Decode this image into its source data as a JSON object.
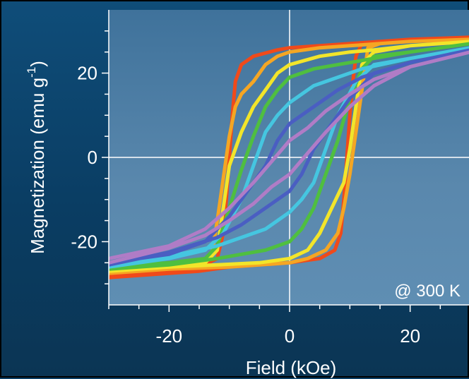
{
  "chart_data": {
    "type": "line",
    "title": "",
    "xlabel": "Field (kOe)",
    "ylabel": "Magnetization  (emu g",
    "ylabel_sup": "-1",
    "ylabel_close": ")",
    "annotation": "@ 300 K",
    "xlim": [
      -30,
      30
    ],
    "ylim": [
      -35,
      35
    ],
    "xticks": [
      -20,
      0,
      20
    ],
    "yticks": [
      -20,
      0,
      20
    ],
    "grid_lines_at_zero": true,
    "background_color": "#4d7fa6",
    "series": [
      {
        "color": "#f04a1a",
        "upper": [
          [
            -30,
            -28
          ],
          [
            -20,
            -27
          ],
          [
            -15,
            -26
          ],
          [
            -12,
            -24
          ],
          [
            -11,
            -18
          ],
          [
            -10.5,
            -10
          ],
          [
            -10,
            0
          ],
          [
            -9.5,
            10
          ],
          [
            -9,
            18
          ],
          [
            -8,
            22
          ],
          [
            -6,
            24
          ],
          [
            -2,
            25.5
          ],
          [
            0,
            26
          ],
          [
            5,
            26.5
          ],
          [
            10,
            27
          ],
          [
            15,
            27.5
          ],
          [
            20,
            28
          ],
          [
            30,
            28.5
          ]
        ],
        "lower": [
          [
            30,
            28.5
          ],
          [
            20,
            28
          ],
          [
            15,
            27.5
          ],
          [
            12,
            27
          ],
          [
            11,
            24
          ],
          [
            10.5,
            18
          ],
          [
            10,
            10
          ],
          [
            9.5,
            0
          ],
          [
            9,
            -10
          ],
          [
            8.5,
            -18
          ],
          [
            7.5,
            -22
          ],
          [
            5,
            -24
          ],
          [
            0,
            -25
          ],
          [
            -5,
            -25.5
          ],
          [
            -10,
            -26
          ],
          [
            -15,
            -27
          ],
          [
            -20,
            -27.5
          ],
          [
            -30,
            -28.5
          ]
        ]
      },
      {
        "color": "#f5a623",
        "upper": [
          [
            -30,
            -27
          ],
          [
            -20,
            -26
          ],
          [
            -15,
            -25
          ],
          [
            -13,
            -24
          ],
          [
            -12,
            -15
          ],
          [
            -11,
            -5
          ],
          [
            -10,
            5
          ],
          [
            -9,
            12
          ],
          [
            -8,
            15
          ],
          [
            -6,
            18
          ],
          [
            -4,
            22
          ],
          [
            -2,
            24
          ],
          [
            0,
            25
          ],
          [
            5,
            26
          ],
          [
            10,
            26.5
          ],
          [
            20,
            27.5
          ],
          [
            30,
            28
          ]
        ],
        "lower": [
          [
            30,
            28
          ],
          [
            20,
            27.5
          ],
          [
            15,
            27
          ],
          [
            13,
            26
          ],
          [
            12,
            16
          ],
          [
            11,
            6
          ],
          [
            10,
            -4
          ],
          [
            9,
            -12
          ],
          [
            8,
            -18
          ],
          [
            6,
            -22
          ],
          [
            3,
            -24
          ],
          [
            0,
            -25
          ],
          [
            -10,
            -26
          ],
          [
            -20,
            -26.5
          ],
          [
            -30,
            -27.5
          ]
        ]
      },
      {
        "color": "#f2e52a",
        "upper": [
          [
            -30,
            -27
          ],
          [
            -20,
            -26
          ],
          [
            -14,
            -25
          ],
          [
            -12,
            -22
          ],
          [
            -11,
            -12
          ],
          [
            -10,
            -2
          ],
          [
            -8,
            6
          ],
          [
            -6,
            12
          ],
          [
            -4,
            16
          ],
          [
            -2,
            20
          ],
          [
            0,
            22
          ],
          [
            5,
            24
          ],
          [
            10,
            25
          ],
          [
            14,
            25.5
          ],
          [
            20,
            26.5
          ],
          [
            30,
            27.5
          ]
        ],
        "lower": [
          [
            30,
            27.5
          ],
          [
            20,
            26.5
          ],
          [
            14,
            25
          ],
          [
            12,
            22
          ],
          [
            11,
            12
          ],
          [
            10,
            2
          ],
          [
            9,
            -6
          ],
          [
            7,
            -12
          ],
          [
            5,
            -18
          ],
          [
            3,
            -22
          ],
          [
            0,
            -24
          ],
          [
            -5,
            -25
          ],
          [
            -12,
            -25.5
          ],
          [
            -20,
            -26
          ],
          [
            -30,
            -27
          ]
        ]
      },
      {
        "color": "#4fbf3f",
        "upper": [
          [
            -30,
            -26
          ],
          [
            -20,
            -25
          ],
          [
            -14,
            -24
          ],
          [
            -12,
            -21
          ],
          [
            -10,
            -12
          ],
          [
            -8,
            -3
          ],
          [
            -6,
            5
          ],
          [
            -4,
            12
          ],
          [
            -2,
            16
          ],
          [
            0,
            19
          ],
          [
            4,
            21
          ],
          [
            8,
            22
          ],
          [
            12,
            23
          ],
          [
            20,
            25
          ],
          [
            30,
            27
          ]
        ],
        "lower": [
          [
            30,
            27
          ],
          [
            20,
            25
          ],
          [
            14,
            24
          ],
          [
            12,
            21
          ],
          [
            10,
            14
          ],
          [
            8,
            4
          ],
          [
            6,
            -4
          ],
          [
            4,
            -12
          ],
          [
            2,
            -17
          ],
          [
            0,
            -20
          ],
          [
            -4,
            -22
          ],
          [
            -8,
            -23
          ],
          [
            -12,
            -24
          ],
          [
            -20,
            -25.5
          ],
          [
            -30,
            -26.5
          ]
        ]
      },
      {
        "color": "#45c6e0",
        "upper": [
          [
            -30,
            -26
          ],
          [
            -20,
            -24
          ],
          [
            -14,
            -22
          ],
          [
            -11,
            -18
          ],
          [
            -8,
            -10
          ],
          [
            -6,
            -2
          ],
          [
            -4,
            6
          ],
          [
            -2,
            10
          ],
          [
            0,
            13
          ],
          [
            4,
            17
          ],
          [
            8,
            19
          ],
          [
            12,
            21
          ],
          [
            20,
            23.5
          ],
          [
            30,
            26
          ]
        ],
        "lower": [
          [
            30,
            26
          ],
          [
            20,
            23.5
          ],
          [
            14,
            22
          ],
          [
            11,
            18
          ],
          [
            8,
            10
          ],
          [
            6,
            2
          ],
          [
            4,
            -6
          ],
          [
            2,
            -10
          ],
          [
            0,
            -13
          ],
          [
            -4,
            -17
          ],
          [
            -8,
            -19
          ],
          [
            -12,
            -21
          ],
          [
            -20,
            -23.5
          ],
          [
            -30,
            -26
          ]
        ]
      },
      {
        "color": "#4a5ec2",
        "upper": [
          [
            -30,
            -25
          ],
          [
            -20,
            -23
          ],
          [
            -14,
            -20
          ],
          [
            -10,
            -14
          ],
          [
            -7,
            -8
          ],
          [
            -4,
            -2
          ],
          [
            -2,
            4
          ],
          [
            0,
            8
          ],
          [
            4,
            12
          ],
          [
            8,
            16
          ],
          [
            12,
            19
          ],
          [
            20,
            22.5
          ],
          [
            30,
            25.5
          ]
        ],
        "lower": [
          [
            30,
            25.5
          ],
          [
            20,
            22.5
          ],
          [
            14,
            20
          ],
          [
            10,
            14
          ],
          [
            7,
            8
          ],
          [
            4,
            2
          ],
          [
            2,
            -4
          ],
          [
            0,
            -8
          ],
          [
            -4,
            -12
          ],
          [
            -8,
            -16
          ],
          [
            -12,
            -19
          ],
          [
            -20,
            -22.5
          ],
          [
            -30,
            -25.5
          ]
        ]
      },
      {
        "color": "#b07cc6",
        "upper": [
          [
            -30,
            -24
          ],
          [
            -20,
            -21
          ],
          [
            -14,
            -17
          ],
          [
            -10,
            -12
          ],
          [
            -6,
            -6
          ],
          [
            -3,
            -1
          ],
          [
            0,
            4
          ],
          [
            3,
            7
          ],
          [
            6,
            11
          ],
          [
            10,
            15
          ],
          [
            14,
            18.5
          ],
          [
            20,
            21.5
          ],
          [
            30,
            25
          ]
        ],
        "lower": [
          [
            30,
            25
          ],
          [
            20,
            21.5
          ],
          [
            14,
            17
          ],
          [
            10,
            12
          ],
          [
            6,
            6
          ],
          [
            3,
            1
          ],
          [
            0,
            -4
          ],
          [
            -3,
            -7
          ],
          [
            -6,
            -11
          ],
          [
            -10,
            -15
          ],
          [
            -14,
            -18.5
          ],
          [
            -20,
            -21.5
          ],
          [
            -30,
            -25
          ]
        ]
      }
    ]
  }
}
